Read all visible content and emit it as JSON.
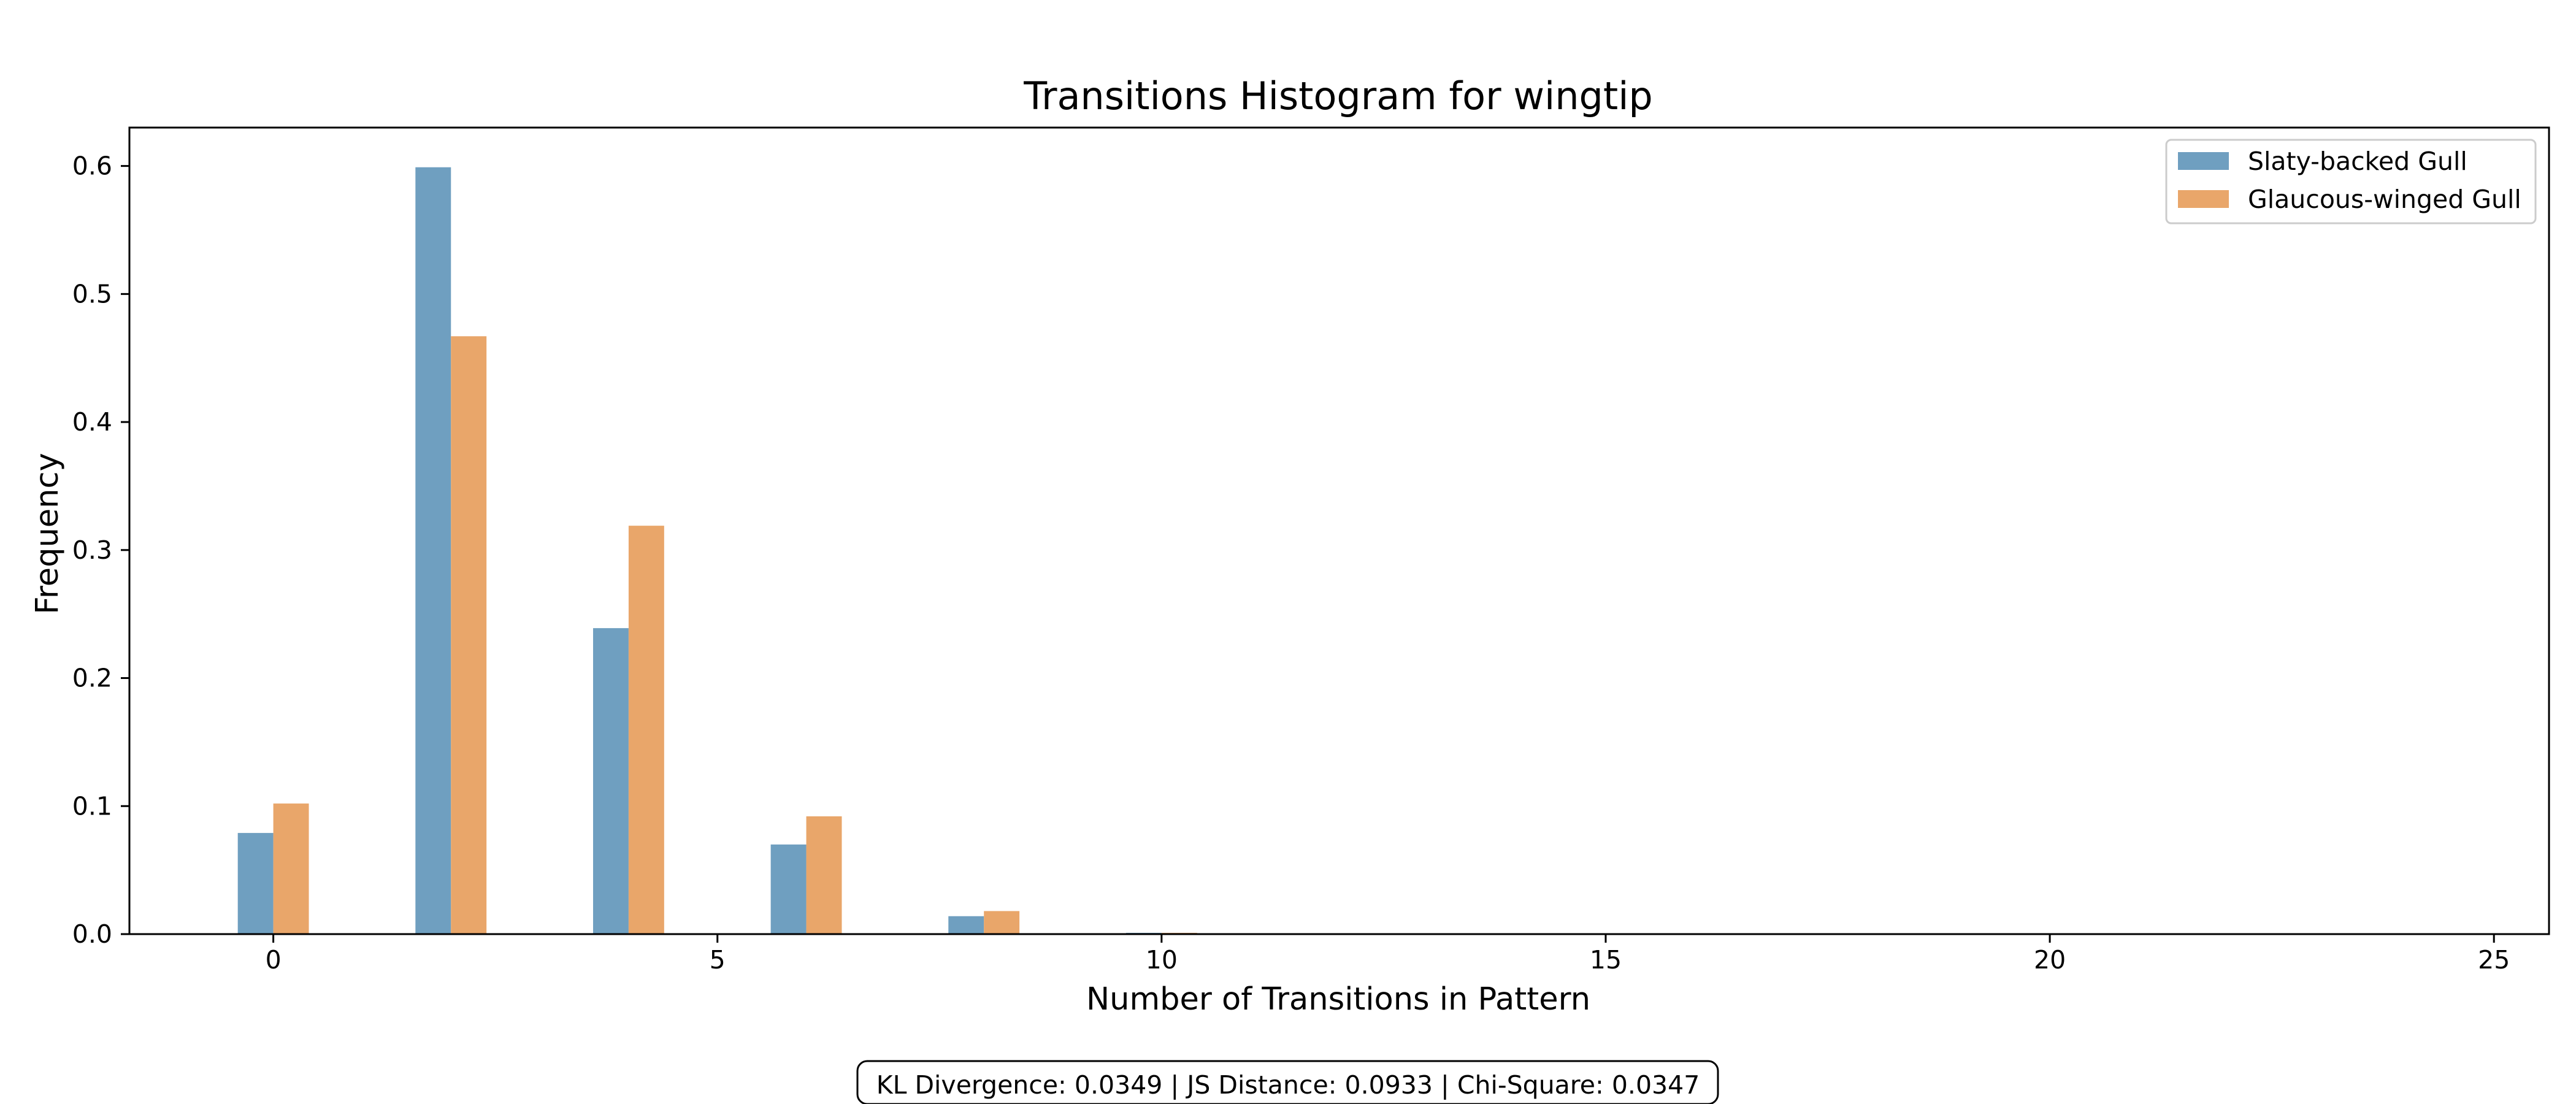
{
  "chart_data": {
    "type": "bar",
    "title": "Transitions Histogram for wingtip",
    "xlabel": "Number of Transitions in Pattern",
    "ylabel": "Frequency",
    "xlim": [
      -1.62,
      25.62
    ],
    "ylim": [
      0,
      0.63
    ],
    "xticks": [
      0,
      5,
      10,
      15,
      20,
      25
    ],
    "yticks": [
      0.0,
      0.1,
      0.2,
      0.3,
      0.4,
      0.5,
      0.6
    ],
    "ytick_labels": [
      "0.0",
      "0.1",
      "0.2",
      "0.3",
      "0.4",
      "0.5",
      "0.6"
    ],
    "x": [
      0,
      2,
      4,
      6,
      8,
      10
    ],
    "bar_width_units": 0.4,
    "series": [
      {
        "name": "Slaty-backed Gull",
        "color": "#6f9fc0",
        "values": [
          0.079,
          0.599,
          0.239,
          0.07,
          0.014,
          0.001
        ]
      },
      {
        "name": "Glaucous-winged Gull",
        "color": "#e9a66a",
        "values": [
          0.102,
          0.467,
          0.319,
          0.092,
          0.018,
          0.001
        ]
      }
    ],
    "grid": false,
    "legend_position": "upper right",
    "annotation": "KL Divergence: 0.0349 | JS Distance: 0.0933 | Chi-Square: 0.0347"
  }
}
